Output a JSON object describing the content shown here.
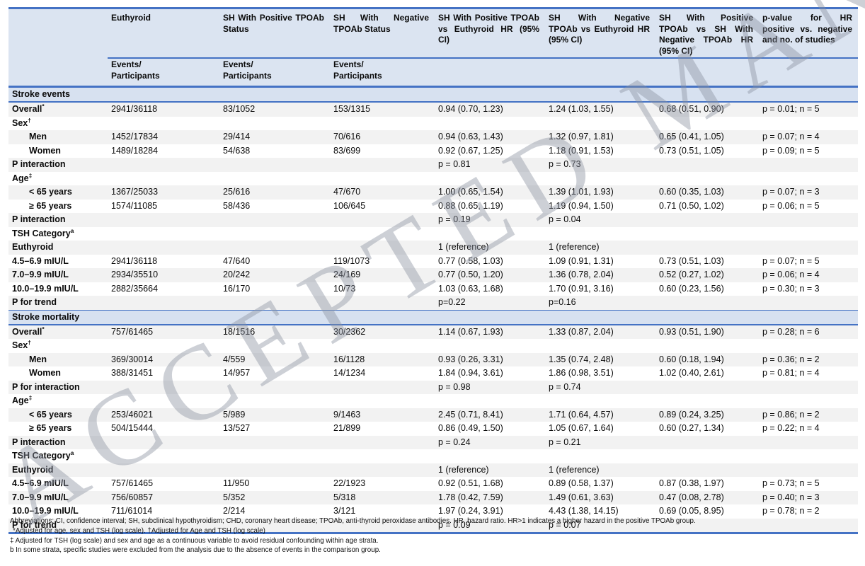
{
  "watermark": "ACCEPTED MANUSCRIPT",
  "colors": {
    "line_blue": "#4472c4",
    "header_bg": "#dbe4f1",
    "section_bg": "#d7e1f0",
    "row_gray": "#f2f2f2"
  },
  "header": {
    "columns": [
      {
        "label": ""
      },
      {
        "label": "Euthyroid",
        "sub": "Events/\nParticipants"
      },
      {
        "label": "SH With Positive TPOAb Status",
        "sub": "Events/\nParticipants"
      },
      {
        "label": "SH With Negative TPOAb Status",
        "sub": "Events/\nParticipants"
      },
      {
        "label": "SH With Positive TPOAb vs Euthyroid HR (95% CI)"
      },
      {
        "label": "SH With Negative TPOAb vs Euthyroid HR (95% CI)"
      },
      {
        "label": "SH With Positive TPOAb vs SH With Negative TPOAb HR (95% CI)"
      },
      {
        "label": "p-value for HR positive vs. negative and no. of studies"
      }
    ]
  },
  "sections": [
    {
      "title": "Stroke events",
      "rows": [
        {
          "label": "Overall",
          "sup": "*",
          "cells": [
            "2941/36118",
            "83/1052",
            "153/1315",
            "0.94 (0.70, 1.23)",
            "1.24 (1.03, 1.55)",
            "0.68 (0.51, 0.90)",
            "p = 0.01; n = 5"
          ]
        },
        {
          "label": "Sex",
          "sup": "†",
          "cells": [
            "",
            "",
            "",
            "",
            "",
            "",
            ""
          ]
        },
        {
          "label": "Men",
          "indent": true,
          "cells": [
            "1452/17834",
            "29/414",
            "70/616",
            "0.94 (0.63, 1.43)",
            "1.32 (0.97, 1.81)",
            "0.65 (0.41, 1.05)",
            "p = 0.07; n = 4"
          ]
        },
        {
          "label": "Women",
          "indent": true,
          "cells": [
            "1489/18284",
            "54/638",
            "83/699",
            "0.92 (0.67, 1.25)",
            "1.18 (0.91, 1.53)",
            "0.73 (0.51, 1.05)",
            "p = 0.09; n = 5"
          ]
        },
        {
          "label": "P interaction",
          "cells": [
            "",
            "",
            "",
            "p = 0.81",
            "p = 0.73",
            "",
            ""
          ]
        },
        {
          "label": "Age",
          "sup": "‡",
          "cells": [
            "",
            "",
            "",
            "",
            "",
            "",
            ""
          ]
        },
        {
          "label": "< 65 years",
          "indent": true,
          "cells": [
            "1367/25033",
            "25/616",
            "47/670",
            "1.00 (0.65, 1.54)",
            "1.39 (1.01, 1.93)",
            "0.60 (0.35, 1.03)",
            "p = 0.07; n = 3"
          ]
        },
        {
          "label": "≥ 65 years",
          "indent": true,
          "cells": [
            "1574/11085",
            "58/436",
            "106/645",
            "0.88 (0.65, 1.19)",
            "1.19 (0.94, 1.50)",
            "0.71 (0.50, 1.02)",
            "p = 0.06; n = 5"
          ]
        },
        {
          "label": "P interaction",
          "cells": [
            "",
            "",
            "",
            "p = 0.19",
            "p = 0.04",
            "",
            ""
          ]
        },
        {
          "label": "TSH Category",
          "sup": "a",
          "cells": [
            "",
            "",
            "",
            "",
            "",
            "",
            ""
          ]
        },
        {
          "label": "Euthyroid",
          "cells": [
            "",
            "",
            "",
            "1 (reference)",
            "1 (reference)",
            "",
            ""
          ]
        },
        {
          "label": "4.5–6.9 mIU/L",
          "cells": [
            "2941/36118",
            "47/640",
            "119/1073",
            "0.77 (0.58, 1.03)",
            "1.09 (0.91, 1.31)",
            "0.73 (0.51, 1.03)",
            "p = 0.07; n = 5"
          ]
        },
        {
          "label": "7.0–9.9 mIU/L",
          "cells": [
            "2934/35510",
            "20/242",
            "24/169",
            "0.77 (0.50, 1.20)",
            "1.36 (0.78, 2.04)",
            "0.52 (0.27, 1.02)",
            "p = 0.06; n = 4"
          ]
        },
        {
          "label": "10.0–19.9 mIU/L",
          "cells": [
            "2882/35664",
            "16/170",
            "10/73",
            "1.03 (0.63, 1.68)",
            "1.70 (0.91, 3.16)",
            "0.60 (0.23, 1.56)",
            "p = 0.30; n = 3"
          ]
        },
        {
          "label": "P for trend",
          "cells": [
            "",
            "",
            "",
            "p=0.22",
            "p=0.16",
            "",
            ""
          ]
        }
      ]
    },
    {
      "title": "Stroke mortality",
      "rows": [
        {
          "label": "Overall",
          "sup": "*",
          "cells": [
            "757/61465",
            "18/1516",
            "30/2362",
            "1.14 (0.67, 1.93)",
            "1.33 (0.87, 2.04)",
            "0.93 (0.51, 1.90)",
            "p = 0.28; n = 6"
          ]
        },
        {
          "label": "Sex",
          "sup": "†",
          "cells": [
            "",
            "",
            "",
            "",
            "",
            "",
            ""
          ]
        },
        {
          "label": "Men",
          "indent": true,
          "cells": [
            "369/30014",
            "4/559",
            "16/1128",
            "0.93 (0.26, 3.31)",
            "1.35 (0.74, 2.48)",
            "0.60 (0.18, 1.94)",
            "p = 0.36; n = 2"
          ]
        },
        {
          "label": "Women",
          "indent": true,
          "cells": [
            "388/31451",
            "14/957",
            "14/1234",
            "1.84 (0.94, 3.61)",
            "1.86 (0.98, 3.51)",
            "1.02 (0.40, 2.61)",
            "p = 0.81; n = 4"
          ]
        },
        {
          "label": "P for interaction",
          "cells": [
            "",
            "",
            "",
            "p = 0.98",
            "p = 0.74",
            "",
            ""
          ]
        },
        {
          "label": "Age",
          "sup": "‡",
          "cells": [
            "",
            "",
            "",
            "",
            "",
            "",
            ""
          ]
        },
        {
          "label": "< 65 years",
          "indent": true,
          "cells": [
            "253/46021",
            "5/989",
            "9/1463",
            "2.45 (0.71, 8.41)",
            "1.71 (0.64, 4.57)",
            "0.89 (0.24, 3.25)",
            "p = 0.86; n = 2"
          ]
        },
        {
          "label": "≥ 65 years",
          "indent": true,
          "cells": [
            "504/15444",
            "13/527",
            "21/899",
            "0.86 (0.49, 1.50)",
            "1.05 (0.67, 1.64)",
            "0.60 (0.27, 1.34)",
            "p = 0.22; n = 4"
          ]
        },
        {
          "label": "P interaction",
          "cells": [
            "",
            "",
            "",
            "p = 0.24",
            "p = 0.21",
            "",
            ""
          ]
        },
        {
          "label": "TSH Category",
          "sup": "a",
          "cells": [
            "",
            "",
            "",
            "",
            "",
            "",
            ""
          ]
        },
        {
          "label": "Euthyroid",
          "cells": [
            "",
            "",
            "",
            "1 (reference)",
            "1 (reference)",
            "",
            ""
          ]
        },
        {
          "label": "4.5–6.9 mIU/L",
          "cells": [
            "757/61465",
            "11/950",
            "22/1923",
            "0.92 (0.51, 1.68)",
            "0.89 (0.58, 1.37)",
            "0.87 (0.38, 1.97)",
            "p = 0.73; n = 5"
          ]
        },
        {
          "label": "7.0–9.9 mIU/L",
          "cells": [
            "756/60857",
            "5/352",
            "5/318",
            "1.78 (0.42, 7.59)",
            "1.49 (0.61, 3.63)",
            "0.47 (0.08, 2.78)",
            "p = 0.40; n = 3"
          ]
        },
        {
          "label": "10.0–19.9 mIU/L",
          "cells": [
            "711/61014",
            "2/214",
            "3/121",
            "1.97 (0.24, 3.91)",
            "4.43 (1.38, 14.15)",
            "0.69 (0.05, 8.95)",
            "p = 0.78; n = 2"
          ]
        },
        {
          "label": "P for trend",
          "cells": [
            "",
            "",
            "",
            "p = 0.09",
            "p = 0.07",
            "",
            ""
          ]
        }
      ]
    }
  ],
  "footnotes": [
    "Abbreviations: CI, confidence interval; SH, subclinical hypothyroidism; CHD, coronary heart disease; TPOAb, anti-thyroid peroxidase antibodies. HR, hazard ratio. HR>1 indicates a higher hazard in the positive TPOAb group.",
    "*Adjusted for age, sex and TSH (log scale). †Adjusted for Age and TSH (log scale)",
    "‡ Adjusted for TSH (log scale) and sex and age as a continuous variable to avoid residual confounding within age strata.",
    "b In some strata, specific studies were excluded from the analysis due to the absence of events in the comparison group."
  ]
}
